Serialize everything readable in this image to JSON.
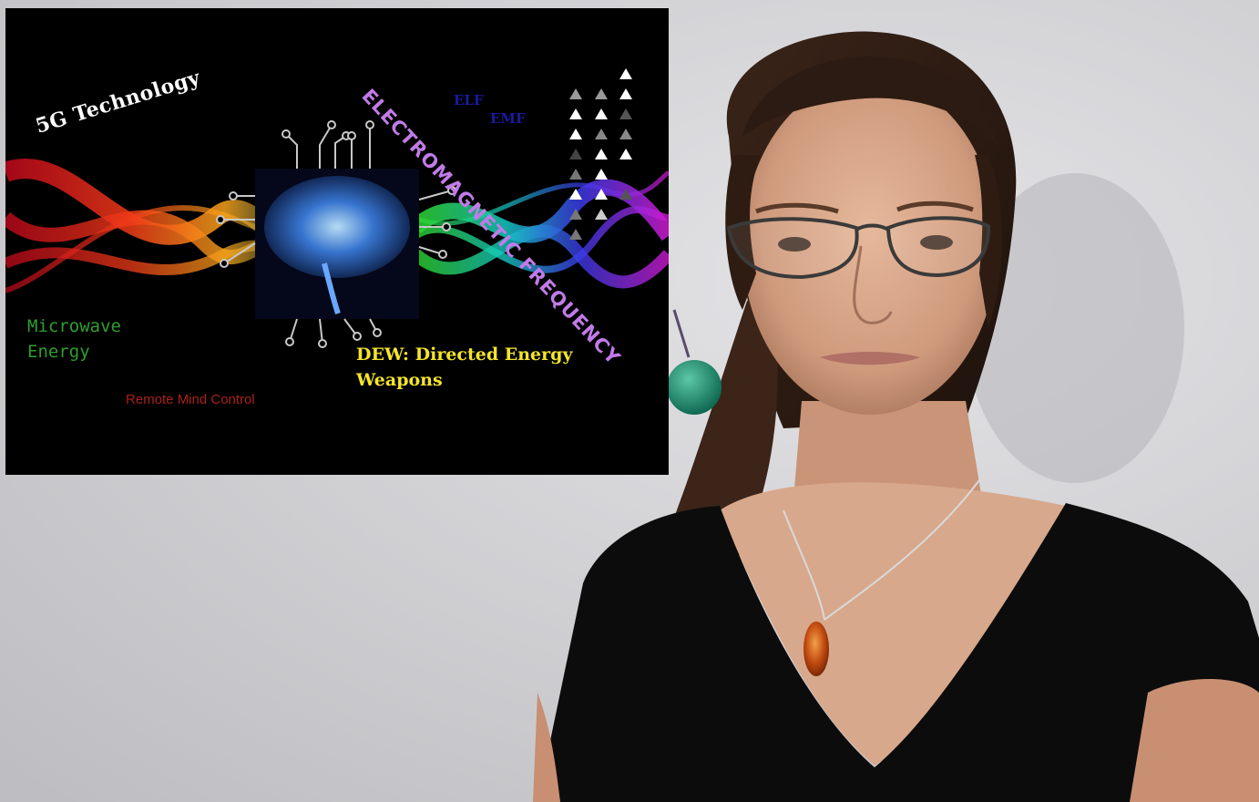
{
  "inset_graphic": {
    "title": "5G Technology",
    "band_labels": [
      "ELF",
      "EMF"
    ],
    "arc_text": "ELECTROMAGNETIC FREQUENCY",
    "microwave_line1": "Microwave",
    "microwave_line2": "Energy",
    "remote_label": "Remote Mind Control",
    "dew_line1": "DEW: Directed Energy",
    "dew_line2": "Weapons"
  },
  "colors": {
    "background_wall": "#d3d3d6",
    "inset_background": "#000000",
    "title_text": "#ffffff",
    "arc_text": "#c17be8",
    "band_labels": "#1a1aa0",
    "microwave_text": "#2f9e2f",
    "remote_text": "#a8201c",
    "dew_text": "#f4e52a",
    "brain_glow": "#3a7ad8",
    "earring": "#1f8f72",
    "pendant": "#c24a10",
    "shirt": "#0c0c0c"
  },
  "icons": [
    "brain-circuit-icon",
    "triangle-grid-icon"
  ]
}
